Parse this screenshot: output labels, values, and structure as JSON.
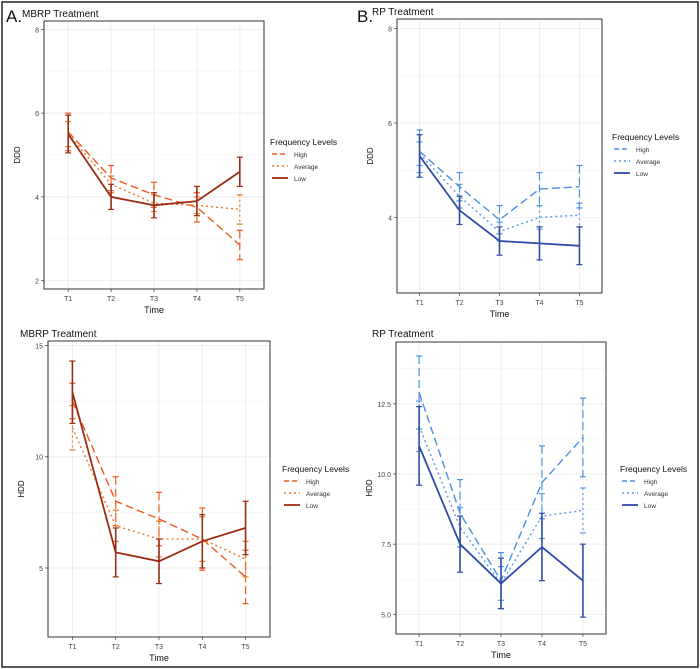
{
  "figure": {
    "label_A": "A.",
    "label_B": "B."
  },
  "colors": {
    "mbrp_high": "#ee5a22",
    "mbrp_average": "#e87a2a",
    "mbrp_low": "#9b2c14",
    "rp_high": "#4a90e0",
    "rp_average": "#5b9be6",
    "rp_low": "#2f4aa8",
    "grid": "#eeeeee",
    "frame": "#333333"
  },
  "chart_data": [
    {
      "id": "mbrp_ddd",
      "type": "line",
      "title": "MBRP Treatment",
      "xlabel": "Time",
      "ylabel": "DDD",
      "categories": [
        "T1",
        "T2",
        "T3",
        "T4",
        "T5"
      ],
      "ylim": [
        1.8,
        8.2
      ],
      "yticks": [
        2,
        4,
        6,
        8
      ],
      "legend_title": "Frequency Levels",
      "legend_position": "right",
      "series": [
        {
          "name": "High",
          "style": "longdash",
          "values": [
            5.55,
            4.45,
            4.05,
            3.75,
            2.85
          ],
          "errors": [
            0.45,
            0.3,
            0.3,
            0.35,
            0.35
          ]
        },
        {
          "name": "Average",
          "style": "dotted",
          "values": [
            5.5,
            4.3,
            3.85,
            3.8,
            3.7
          ],
          "errors": [
            0.3,
            0.2,
            0.2,
            0.2,
            0.35
          ]
        },
        {
          "name": "Low",
          "style": "solid",
          "values": [
            5.5,
            4.0,
            3.8,
            3.9,
            4.6
          ],
          "errors": [
            0.45,
            0.3,
            0.3,
            0.35,
            0.35
          ]
        }
      ]
    },
    {
      "id": "rp_ddd",
      "type": "line",
      "title": "RP Treatment",
      "xlabel": "Time",
      "ylabel": "DDD",
      "categories": [
        "T1",
        "T2",
        "T3",
        "T4",
        "T5"
      ],
      "ylim": [
        2.4,
        8.2
      ],
      "yticks": [
        4,
        6,
        8
      ],
      "legend_title": "Frequency Levels",
      "legend_position": "right",
      "series": [
        {
          "name": "High",
          "style": "longdash",
          "values": [
            5.4,
            4.65,
            3.95,
            4.6,
            4.65
          ],
          "errors": [
            0.45,
            0.3,
            0.3,
            0.35,
            0.45
          ]
        },
        {
          "name": "Average",
          "style": "dotted",
          "values": [
            5.35,
            4.45,
            3.7,
            4.0,
            4.05
          ],
          "errors": [
            0.25,
            0.25,
            0.2,
            0.25,
            0.25
          ]
        },
        {
          "name": "Low",
          "style": "solid",
          "values": [
            5.3,
            4.15,
            3.5,
            3.45,
            3.4
          ],
          "errors": [
            0.45,
            0.3,
            0.3,
            0.35,
            0.4
          ]
        }
      ]
    },
    {
      "id": "mbrp_hdd",
      "type": "line",
      "title": "MBRP Treatment",
      "xlabel": "Time",
      "ylabel": "HDD",
      "categories": [
        "T1",
        "T2",
        "T3",
        "T4",
        "T5"
      ],
      "ylim": [
        1.9,
        15.2
      ],
      "yticks": [
        5,
        10,
        15
      ],
      "legend_title": "Frequency Levels",
      "legend_position": "right",
      "series": [
        {
          "name": "High",
          "style": "longdash",
          "values": [
            12.5,
            8.0,
            7.2,
            6.3,
            4.6
          ],
          "errors": [
            0.8,
            1.1,
            1.2,
            1.4,
            1.2
          ]
        },
        {
          "name": "Average",
          "style": "dotted",
          "values": [
            11.3,
            6.9,
            6.3,
            6.3,
            5.4
          ],
          "errors": [
            1.0,
            0.7,
            0.8,
            1.0,
            0.8
          ]
        },
        {
          "name": "Low",
          "style": "solid",
          "values": [
            12.9,
            5.7,
            5.3,
            6.2,
            6.8
          ],
          "errors": [
            1.4,
            1.1,
            1.0,
            1.2,
            1.2
          ]
        }
      ]
    },
    {
      "id": "rp_hdd",
      "type": "line",
      "title": "RP Treatment",
      "xlabel": "Time",
      "ylabel": "HDD",
      "categories": [
        "T1",
        "T2",
        "T3",
        "T4",
        "T5"
      ],
      "ylim": [
        4.3,
        14.7
      ],
      "yticks": [
        5.0,
        7.5,
        10.0,
        12.5
      ],
      "tick_labels": [
        "5.0",
        "7.5",
        "10.0",
        "12.5"
      ],
      "legend_title": "Frequency Levels",
      "legend_position": "right",
      "series": [
        {
          "name": "High",
          "style": "longdash",
          "values": [
            12.9,
            8.6,
            6.2,
            9.7,
            11.3
          ],
          "errors": [
            1.3,
            1.2,
            1.0,
            1.3,
            1.4
          ]
        },
        {
          "name": "Average",
          "style": "dotted",
          "values": [
            11.7,
            8.1,
            6.1,
            8.5,
            8.7
          ],
          "errors": [
            0.9,
            0.7,
            0.6,
            0.8,
            0.8
          ]
        },
        {
          "name": "Low",
          "style": "solid",
          "values": [
            11.0,
            7.5,
            6.1,
            7.4,
            6.2
          ],
          "errors": [
            1.4,
            1.0,
            0.9,
            1.2,
            1.3
          ]
        }
      ]
    }
  ]
}
